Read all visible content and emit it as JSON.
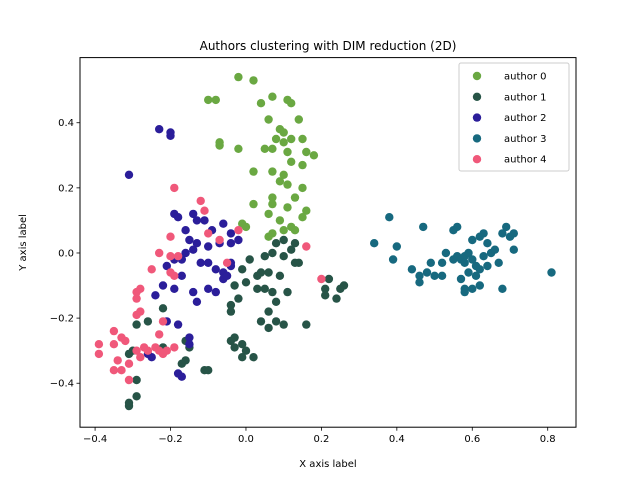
{
  "chart_data": {
    "type": "scatter",
    "title": "Authors clustering with DIM reduction (2D)",
    "xlabel": "X axis label",
    "ylabel": "Y axis label",
    "xlim": [
      -0.44,
      0.875
    ],
    "ylim": [
      -0.535,
      0.6
    ],
    "xticks": [
      -0.4,
      -0.2,
      0.0,
      0.2,
      0.4,
      0.6,
      0.8
    ],
    "xtick_labels": [
      "−0.4",
      "−0.2",
      "0.0",
      "0.2",
      "0.4",
      "0.6",
      "0.8"
    ],
    "yticks": [
      -0.4,
      -0.2,
      0.0,
      0.2,
      0.4
    ],
    "ytick_labels": [
      "−0.4",
      "−0.2",
      "0.0",
      "0.2",
      "0.4"
    ],
    "grid": false,
    "legend_position": "top-right",
    "series": [
      {
        "name": "author 0",
        "color": "#6aa842",
        "points": [
          [
            -0.02,
            0.54
          ],
          [
            0.02,
            0.53
          ],
          [
            0.07,
            0.48
          ],
          [
            0.04,
            0.46
          ],
          [
            -0.1,
            0.47
          ],
          [
            -0.08,
            0.47
          ],
          [
            0.11,
            0.47
          ],
          [
            0.12,
            0.46
          ],
          [
            0.06,
            0.41
          ],
          [
            0.14,
            0.41
          ],
          [
            0.09,
            0.38
          ],
          [
            0.1,
            0.37
          ],
          [
            0.08,
            0.35
          ],
          [
            0.1,
            0.34
          ],
          [
            0.12,
            0.35
          ],
          [
            0.15,
            0.35
          ],
          [
            -0.07,
            0.34
          ],
          [
            -0.07,
            0.33
          ],
          [
            -0.02,
            0.32
          ],
          [
            0.05,
            0.32
          ],
          [
            0.07,
            0.32
          ],
          [
            0.11,
            0.31
          ],
          [
            0.16,
            0.31
          ],
          [
            0.18,
            0.3
          ],
          [
            0.12,
            0.28
          ],
          [
            0.15,
            0.27
          ],
          [
            0.02,
            0.25
          ],
          [
            0.07,
            0.25
          ],
          [
            0.1,
            0.24
          ],
          [
            0.09,
            0.22
          ],
          [
            0.11,
            0.21
          ],
          [
            0.15,
            0.2
          ],
          [
            0.07,
            0.17
          ],
          [
            0.13,
            0.17
          ],
          [
            0.07,
            0.15
          ],
          [
            0.02,
            0.15
          ],
          [
            0.11,
            0.14
          ],
          [
            0.16,
            0.13
          ],
          [
            0.06,
            0.12
          ],
          [
            0.15,
            0.11
          ],
          [
            0.09,
            0.1
          ],
          [
            0.12,
            0.08
          ],
          [
            0.1,
            0.07
          ],
          [
            0.13,
            0.07
          ],
          [
            0.07,
            0.06
          ],
          [
            0.0,
            0.08
          ],
          [
            -0.01,
            0.09
          ],
          [
            0.06,
            0.05
          ]
        ]
      },
      {
        "name": "author 1",
        "color": "#275447",
        "points": [
          [
            0.1,
            0.04
          ],
          [
            0.13,
            0.03
          ],
          [
            0.08,
            0.03
          ],
          [
            0.12,
            0.01
          ],
          [
            0.07,
            0.0
          ],
          [
            0.1,
            -0.01
          ],
          [
            0.14,
            -0.03
          ],
          [
            0.05,
            -0.01
          ],
          [
            0.01,
            -0.02
          ],
          [
            -0.01,
            -0.05
          ],
          [
            0.04,
            -0.06
          ],
          [
            0.06,
            -0.06
          ],
          [
            0.09,
            -0.07
          ],
          [
            0.03,
            -0.07
          ],
          [
            0.0,
            -0.09
          ],
          [
            -0.03,
            -0.1
          ],
          [
            0.05,
            -0.11
          ],
          [
            0.03,
            -0.11
          ],
          [
            0.07,
            -0.12
          ],
          [
            0.11,
            -0.12
          ],
          [
            -0.02,
            -0.14
          ],
          [
            0.08,
            -0.15
          ],
          [
            0.06,
            -0.18
          ],
          [
            0.08,
            -0.21
          ],
          [
            0.04,
            -0.21
          ],
          [
            0.06,
            -0.23
          ],
          [
            0.1,
            -0.22
          ],
          [
            -0.04,
            -0.16
          ],
          [
            -0.04,
            -0.18
          ],
          [
            -0.03,
            -0.26
          ],
          [
            -0.04,
            -0.27
          ],
          [
            -0.03,
            -0.29
          ],
          [
            -0.01,
            -0.28
          ],
          [
            0.0,
            -0.3
          ],
          [
            -0.01,
            -0.32
          ],
          [
            0.02,
            -0.32
          ],
          [
            -0.16,
            -0.27
          ],
          [
            -0.15,
            -0.29
          ],
          [
            -0.16,
            -0.33
          ],
          [
            -0.17,
            -0.34
          ],
          [
            -0.11,
            -0.36
          ],
          [
            -0.1,
            -0.36
          ],
          [
            -0.22,
            -0.17
          ],
          [
            -0.26,
            -0.21
          ],
          [
            -0.29,
            -0.22
          ],
          [
            -0.22,
            -0.29
          ],
          [
            -0.3,
            -0.3
          ],
          [
            -0.31,
            -0.31
          ],
          [
            -0.29,
            -0.39
          ],
          [
            -0.29,
            -0.44
          ],
          [
            -0.31,
            -0.47
          ],
          [
            -0.31,
            -0.46
          ],
          [
            0.21,
            -0.11
          ],
          [
            0.22,
            -0.08
          ],
          [
            0.24,
            -0.14
          ],
          [
            0.26,
            -0.1
          ],
          [
            0.25,
            -0.11
          ],
          [
            0.21,
            -0.13
          ],
          [
            0.13,
            -0.03
          ],
          [
            0.16,
            -0.22
          ]
        ]
      },
      {
        "name": "author 2",
        "color": "#2b1e9a",
        "points": [
          [
            -0.23,
            0.38
          ],
          [
            -0.2,
            0.37
          ],
          [
            -0.2,
            0.36
          ],
          [
            -0.31,
            0.24
          ],
          [
            -0.19,
            0.12
          ],
          [
            -0.18,
            0.11
          ],
          [
            -0.14,
            0.12
          ],
          [
            -0.13,
            0.1
          ],
          [
            -0.11,
            0.1
          ],
          [
            -0.09,
            0.07
          ],
          [
            -0.06,
            0.09
          ],
          [
            -0.04,
            0.06
          ],
          [
            -0.02,
            0.04
          ],
          [
            -0.04,
            0.03
          ],
          [
            -0.07,
            0.03
          ],
          [
            -0.1,
            0.02
          ],
          [
            -0.16,
            0.07
          ],
          [
            -0.15,
            0.04
          ],
          [
            -0.13,
            0.03
          ],
          [
            -0.14,
            0.01
          ],
          [
            -0.16,
            0.0
          ],
          [
            -0.19,
            -0.02
          ],
          [
            -0.21,
            -0.04
          ],
          [
            -0.12,
            -0.03
          ],
          [
            -0.1,
            -0.03
          ],
          [
            -0.08,
            -0.05
          ],
          [
            -0.06,
            -0.06
          ],
          [
            -0.1,
            -0.11
          ],
          [
            -0.14,
            -0.12
          ],
          [
            -0.17,
            -0.07
          ],
          [
            -0.19,
            -0.11
          ],
          [
            -0.22,
            -0.1
          ],
          [
            -0.24,
            -0.13
          ],
          [
            -0.21,
            -0.21
          ],
          [
            -0.18,
            -0.22
          ],
          [
            -0.15,
            -0.26
          ],
          [
            -0.13,
            -0.15
          ],
          [
            -0.06,
            -0.08
          ],
          [
            -0.08,
            -0.12
          ],
          [
            -0.04,
            -0.03
          ],
          [
            -0.25,
            -0.32
          ],
          [
            -0.26,
            -0.31
          ],
          [
            -0.18,
            -0.37
          ],
          [
            -0.17,
            -0.38
          ],
          [
            -0.15,
            -0.28
          ],
          [
            -0.04,
            -0.04
          ],
          [
            -0.05,
            -0.07
          ],
          [
            -0.17,
            -0.02
          ]
        ]
      },
      {
        "name": "author 3",
        "color": "#17697f",
        "points": [
          [
            0.38,
            0.11
          ],
          [
            0.34,
            0.03
          ],
          [
            0.4,
            0.02
          ],
          [
            0.39,
            -0.02
          ],
          [
            0.44,
            -0.05
          ],
          [
            0.46,
            -0.07
          ],
          [
            0.46,
            -0.09
          ],
          [
            0.47,
            0.08
          ],
          [
            0.49,
            -0.03
          ],
          [
            0.48,
            -0.06
          ],
          [
            0.5,
            -0.07
          ],
          [
            0.52,
            -0.07
          ],
          [
            0.52,
            -0.03
          ],
          [
            0.55,
            -0.02
          ],
          [
            0.55,
            0.07
          ],
          [
            0.56,
            0.08
          ],
          [
            0.56,
            -0.01
          ],
          [
            0.57,
            -0.02
          ],
          [
            0.58,
            -0.01
          ],
          [
            0.58,
            -0.03
          ],
          [
            0.58,
            -0.11
          ],
          [
            0.58,
            -0.12
          ],
          [
            0.6,
            -0.11
          ],
          [
            0.6,
            0.04
          ],
          [
            0.61,
            -0.04
          ],
          [
            0.61,
            -0.07
          ],
          [
            0.62,
            0.05
          ],
          [
            0.62,
            -0.1
          ],
          [
            0.63,
            0.06
          ],
          [
            0.64,
            0.03
          ],
          [
            0.65,
            0.0
          ],
          [
            0.64,
            -0.04
          ],
          [
            0.66,
            0.01
          ],
          [
            0.67,
            -0.03
          ],
          [
            0.68,
            0.06
          ],
          [
            0.68,
            -0.11
          ],
          [
            0.69,
            0.08
          ],
          [
            0.7,
            0.05
          ],
          [
            0.71,
            0.06
          ],
          [
            0.71,
            0.01
          ],
          [
            0.81,
            -0.06
          ],
          [
            0.59,
            0.0
          ],
          [
            0.6,
            -0.02
          ],
          [
            0.62,
            -0.05
          ],
          [
            0.57,
            -0.08
          ],
          [
            0.59,
            -0.06
          ],
          [
            0.63,
            -0.01
          ],
          [
            0.53,
            0.0
          ]
        ]
      },
      {
        "name": "author 4",
        "color": "#f0587a",
        "points": [
          [
            -0.19,
            0.2
          ],
          [
            -0.12,
            0.16
          ],
          [
            -0.11,
            0.13
          ],
          [
            -0.1,
            0.06
          ],
          [
            -0.07,
            0.04
          ],
          [
            -0.05,
            -0.03
          ],
          [
            -0.2,
            0.05
          ],
          [
            -0.23,
            0.0
          ],
          [
            -0.2,
            -0.01
          ],
          [
            -0.18,
            -0.01
          ],
          [
            -0.25,
            -0.05
          ],
          [
            -0.2,
            -0.06
          ],
          [
            -0.19,
            -0.07
          ],
          [
            -0.28,
            -0.11
          ],
          [
            -0.29,
            -0.12
          ],
          [
            -0.29,
            -0.14
          ],
          [
            -0.28,
            -0.18
          ],
          [
            -0.29,
            -0.19
          ],
          [
            -0.22,
            -0.21
          ],
          [
            -0.23,
            -0.25
          ],
          [
            -0.24,
            -0.29
          ],
          [
            -0.23,
            -0.3
          ],
          [
            -0.22,
            -0.31
          ],
          [
            -0.21,
            -0.3
          ],
          [
            -0.19,
            -0.29
          ],
          [
            -0.27,
            -0.29
          ],
          [
            -0.26,
            -0.3
          ],
          [
            -0.28,
            -0.32
          ],
          [
            -0.29,
            -0.3
          ],
          [
            -0.32,
            -0.27
          ],
          [
            -0.33,
            -0.26
          ],
          [
            -0.35,
            -0.24
          ],
          [
            -0.35,
            -0.28
          ],
          [
            -0.34,
            -0.33
          ],
          [
            -0.31,
            -0.34
          ],
          [
            -0.35,
            -0.36
          ],
          [
            -0.33,
            -0.36
          ],
          [
            -0.31,
            -0.39
          ],
          [
            -0.39,
            -0.28
          ],
          [
            -0.39,
            -0.31
          ],
          [
            0.2,
            -0.08
          ],
          [
            0.16,
            0.02
          ],
          [
            -0.02,
            0.07
          ]
        ]
      }
    ]
  }
}
